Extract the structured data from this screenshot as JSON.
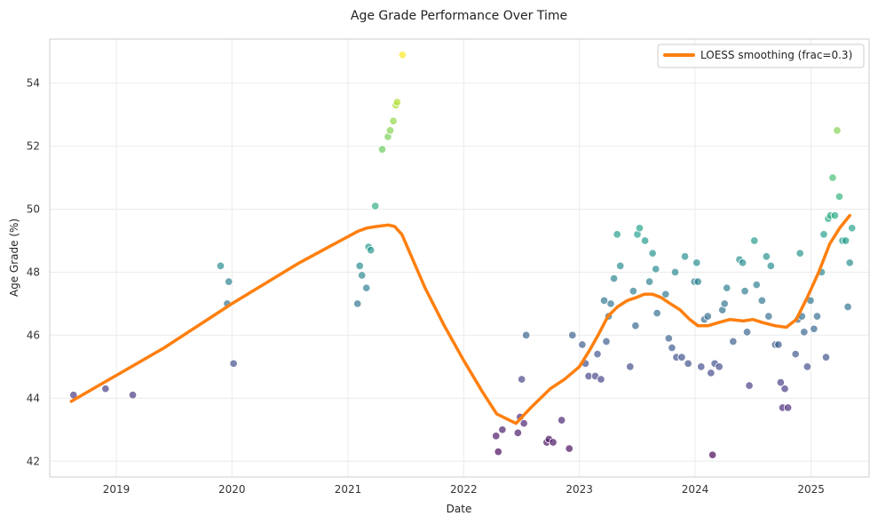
{
  "chart_data": {
    "type": "scatter",
    "title": "Age Grade Performance Over Time",
    "xlabel": "Date",
    "ylabel": "Age Grade (%)",
    "x_axis": "date",
    "xlim": [
      "2018-06-05",
      "2025-07-03"
    ],
    "ylim": [
      41.5,
      55.4
    ],
    "xticks": [
      "2019",
      "2020",
      "2021",
      "2022",
      "2023",
      "2024",
      "2025"
    ],
    "yticks": [
      42,
      44,
      46,
      48,
      50,
      52,
      54
    ],
    "grid": true,
    "legend_position": "top-right",
    "colormap": "viridis",
    "series": [
      {
        "kind": "scatter",
        "points": [
          {
            "x": "2018-08-19",
            "y": 44.1
          },
          {
            "x": "2018-11-28",
            "y": 44.3
          },
          {
            "x": "2019-02-22",
            "y": 44.1
          },
          {
            "x": "2019-11-26",
            "y": 48.2
          },
          {
            "x": "2019-12-17",
            "y": 47.0
          },
          {
            "x": "2019-12-22",
            "y": 47.7
          },
          {
            "x": "2020-01-06",
            "y": 45.1
          },
          {
            "x": "2021-01-31",
            "y": 47.0
          },
          {
            "x": "2021-02-07",
            "y": 48.2
          },
          {
            "x": "2021-02-14",
            "y": 47.9
          },
          {
            "x": "2021-02-28",
            "y": 47.5
          },
          {
            "x": "2021-03-07",
            "y": 48.8
          },
          {
            "x": "2021-03-14",
            "y": 48.7
          },
          {
            "x": "2021-03-28",
            "y": 50.1
          },
          {
            "x": "2021-04-19",
            "y": 51.9
          },
          {
            "x": "2021-05-07",
            "y": 52.3
          },
          {
            "x": "2021-05-14",
            "y": 52.5
          },
          {
            "x": "2021-05-24",
            "y": 52.8
          },
          {
            "x": "2021-06-01",
            "y": 53.3
          },
          {
            "x": "2021-06-05",
            "y": 53.4
          },
          {
            "x": "2021-06-22",
            "y": 54.9
          },
          {
            "x": "2022-04-13",
            "y": 42.8
          },
          {
            "x": "2022-04-20",
            "y": 42.3
          },
          {
            "x": "2022-05-03",
            "y": 43.0
          },
          {
            "x": "2022-06-21",
            "y": 42.9
          },
          {
            "x": "2022-06-28",
            "y": 43.4
          },
          {
            "x": "2022-07-03",
            "y": 44.6
          },
          {
            "x": "2022-07-10",
            "y": 43.2
          },
          {
            "x": "2022-07-17",
            "y": 46.0
          },
          {
            "x": "2022-09-20",
            "y": 42.6
          },
          {
            "x": "2022-09-27",
            "y": 42.7
          },
          {
            "x": "2022-10-10",
            "y": 42.6
          },
          {
            "x": "2022-11-06",
            "y": 43.3
          },
          {
            "x": "2022-11-30",
            "y": 42.4
          },
          {
            "x": "2022-12-10",
            "y": 46.0
          },
          {
            "x": "2023-01-10",
            "y": 45.7
          },
          {
            "x": "2023-01-20",
            "y": 45.1
          },
          {
            "x": "2023-01-30",
            "y": 44.7
          },
          {
            "x": "2023-02-20",
            "y": 44.7
          },
          {
            "x": "2023-02-27",
            "y": 45.4
          },
          {
            "x": "2023-03-10",
            "y": 44.6
          },
          {
            "x": "2023-03-20",
            "y": 47.1
          },
          {
            "x": "2023-03-27",
            "y": 45.8
          },
          {
            "x": "2023-04-03",
            "y": 46.6
          },
          {
            "x": "2023-04-10",
            "y": 47.0
          },
          {
            "x": "2023-04-20",
            "y": 47.8
          },
          {
            "x": "2023-04-30",
            "y": 49.2
          },
          {
            "x": "2023-05-10",
            "y": 48.2
          },
          {
            "x": "2023-06-10",
            "y": 45.0
          },
          {
            "x": "2023-06-20",
            "y": 47.4
          },
          {
            "x": "2023-06-27",
            "y": 46.3
          },
          {
            "x": "2023-07-03",
            "y": 49.2
          },
          {
            "x": "2023-07-10",
            "y": 49.4
          },
          {
            "x": "2023-07-27",
            "y": 49.0
          },
          {
            "x": "2023-08-10",
            "y": 47.7
          },
          {
            "x": "2023-08-20",
            "y": 48.6
          },
          {
            "x": "2023-08-30",
            "y": 48.1
          },
          {
            "x": "2023-09-03",
            "y": 46.7
          },
          {
            "x": "2023-09-30",
            "y": 47.3
          },
          {
            "x": "2023-10-10",
            "y": 45.9
          },
          {
            "x": "2023-10-20",
            "y": 45.6
          },
          {
            "x": "2023-10-30",
            "y": 48.0
          },
          {
            "x": "2023-11-03",
            "y": 45.3
          },
          {
            "x": "2023-11-20",
            "y": 45.3
          },
          {
            "x": "2023-11-30",
            "y": 48.5
          },
          {
            "x": "2023-12-10",
            "y": 45.1
          },
          {
            "x": "2023-12-30",
            "y": 47.7
          },
          {
            "x": "2024-01-06",
            "y": 48.3
          },
          {
            "x": "2024-01-10",
            "y": 47.7
          },
          {
            "x": "2024-01-20",
            "y": 45.0
          },
          {
            "x": "2024-01-30",
            "y": 46.5
          },
          {
            "x": "2024-02-10",
            "y": 46.6
          },
          {
            "x": "2024-02-20",
            "y": 44.8
          },
          {
            "x": "2024-02-25",
            "y": 42.2
          },
          {
            "x": "2024-03-03",
            "y": 45.1
          },
          {
            "x": "2024-03-17",
            "y": 45.0
          },
          {
            "x": "2024-03-27",
            "y": 46.8
          },
          {
            "x": "2024-04-03",
            "y": 47.0
          },
          {
            "x": "2024-04-10",
            "y": 47.5
          },
          {
            "x": "2024-04-30",
            "y": 45.8
          },
          {
            "x": "2024-05-20",
            "y": 48.4
          },
          {
            "x": "2024-05-30",
            "y": 48.3
          },
          {
            "x": "2024-06-06",
            "y": 47.4
          },
          {
            "x": "2024-06-13",
            "y": 46.1
          },
          {
            "x": "2024-06-20",
            "y": 44.4
          },
          {
            "x": "2024-07-06",
            "y": 49.0
          },
          {
            "x": "2024-07-13",
            "y": 47.6
          },
          {
            "x": "2024-07-30",
            "y": 47.1
          },
          {
            "x": "2024-08-13",
            "y": 48.5
          },
          {
            "x": "2024-08-20",
            "y": 46.6
          },
          {
            "x": "2024-08-27",
            "y": 48.2
          },
          {
            "x": "2024-09-10",
            "y": 45.7
          },
          {
            "x": "2024-09-20",
            "y": 45.7
          },
          {
            "x": "2024-09-27",
            "y": 44.5
          },
          {
            "x": "2024-10-03",
            "y": 43.7
          },
          {
            "x": "2024-10-10",
            "y": 44.3
          },
          {
            "x": "2024-10-20",
            "y": 43.7
          },
          {
            "x": "2024-11-13",
            "y": 45.4
          },
          {
            "x": "2024-11-20",
            "y": 46.5
          },
          {
            "x": "2024-11-27",
            "y": 48.6
          },
          {
            "x": "2024-12-03",
            "y": 46.6
          },
          {
            "x": "2024-12-10",
            "y": 46.1
          },
          {
            "x": "2024-12-20",
            "y": 45.0
          },
          {
            "x": "2024-12-30",
            "y": 47.1
          },
          {
            "x": "2025-01-10",
            "y": 46.2
          },
          {
            "x": "2025-01-20",
            "y": 46.6
          },
          {
            "x": "2025-02-03",
            "y": 48.0
          },
          {
            "x": "2025-02-10",
            "y": 49.2
          },
          {
            "x": "2025-02-17",
            "y": 45.3
          },
          {
            "x": "2025-02-24",
            "y": 49.7
          },
          {
            "x": "2025-03-03",
            "y": 49.8
          },
          {
            "x": "2025-03-10",
            "y": 51.0
          },
          {
            "x": "2025-03-17",
            "y": 49.8
          },
          {
            "x": "2025-03-24",
            "y": 52.5
          },
          {
            "x": "2025-03-31",
            "y": 50.4
          },
          {
            "x": "2025-04-10",
            "y": 49.0
          },
          {
            "x": "2025-04-20",
            "y": 49.0
          },
          {
            "x": "2025-04-27",
            "y": 46.9
          },
          {
            "x": "2025-05-03",
            "y": 48.3
          },
          {
            "x": "2025-05-10",
            "y": 49.4
          }
        ]
      },
      {
        "kind": "line",
        "name": "LOESS smoothing (frac=0.3)",
        "color": "#ff7f0e",
        "points": [
          {
            "x": "2018-08-12",
            "y": 43.9
          },
          {
            "x": "2019-06-01",
            "y": 45.6
          },
          {
            "x": "2020-01-01",
            "y": 47.0
          },
          {
            "x": "2020-08-01",
            "y": 48.3
          },
          {
            "x": "2021-02-01",
            "y": 49.3
          },
          {
            "x": "2021-03-01",
            "y": 49.4
          },
          {
            "x": "2021-04-01",
            "y": 49.45
          },
          {
            "x": "2021-05-08",
            "y": 49.5
          },
          {
            "x": "2021-05-28",
            "y": 49.45
          },
          {
            "x": "2021-06-20",
            "y": 49.2
          },
          {
            "x": "2021-07-20",
            "y": 48.5
          },
          {
            "x": "2021-09-01",
            "y": 47.5
          },
          {
            "x": "2021-11-01",
            "y": 46.3
          },
          {
            "x": "2022-01-01",
            "y": 45.2
          },
          {
            "x": "2022-03-01",
            "y": 44.2
          },
          {
            "x": "2022-04-15",
            "y": 43.5
          },
          {
            "x": "2022-06-15",
            "y": 43.2
          },
          {
            "x": "2022-08-01",
            "y": 43.7
          },
          {
            "x": "2022-10-01",
            "y": 44.3
          },
          {
            "x": "2022-11-15",
            "y": 44.6
          },
          {
            "x": "2023-01-01",
            "y": 45.0
          },
          {
            "x": "2023-02-01",
            "y": 45.5
          },
          {
            "x": "2023-03-01",
            "y": 46.0
          },
          {
            "x": "2023-04-01",
            "y": 46.6
          },
          {
            "x": "2023-05-01",
            "y": 46.9
          },
          {
            "x": "2023-06-01",
            "y": 47.1
          },
          {
            "x": "2023-07-01",
            "y": 47.2
          },
          {
            "x": "2023-07-25",
            "y": 47.3
          },
          {
            "x": "2023-08-20",
            "y": 47.3
          },
          {
            "x": "2023-09-15",
            "y": 47.2
          },
          {
            "x": "2023-10-15",
            "y": 47.0
          },
          {
            "x": "2023-11-15",
            "y": 46.8
          },
          {
            "x": "2023-12-15",
            "y": 46.5
          },
          {
            "x": "2024-01-10",
            "y": 46.3
          },
          {
            "x": "2024-02-10",
            "y": 46.3
          },
          {
            "x": "2024-03-15",
            "y": 46.4
          },
          {
            "x": "2024-04-20",
            "y": 46.5
          },
          {
            "x": "2024-06-01",
            "y": 46.45
          },
          {
            "x": "2024-07-01",
            "y": 46.5
          },
          {
            "x": "2024-08-01",
            "y": 46.4
          },
          {
            "x": "2024-09-10",
            "y": 46.3
          },
          {
            "x": "2024-10-15",
            "y": 46.25
          },
          {
            "x": "2024-11-15",
            "y": 46.5
          },
          {
            "x": "2024-12-20",
            "y": 47.2
          },
          {
            "x": "2025-01-25",
            "y": 48.0
          },
          {
            "x": "2025-03-01",
            "y": 48.9
          },
          {
            "x": "2025-04-01",
            "y": 49.4
          },
          {
            "x": "2025-05-03",
            "y": 49.8
          }
        ]
      }
    ]
  }
}
